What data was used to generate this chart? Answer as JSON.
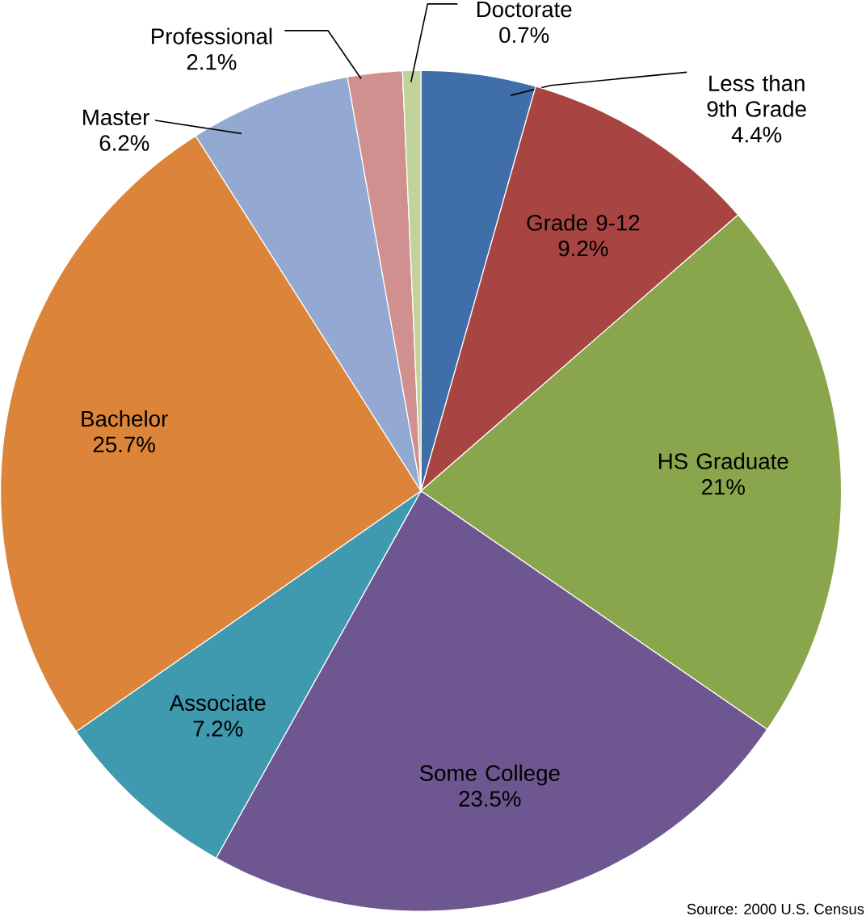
{
  "chart_data": {
    "type": "pie",
    "categories": [
      "Less than 9th Grade",
      "Grade 9-12",
      "HS Graduate",
      "Some College",
      "Associate",
      "Bachelor",
      "Master",
      "Professional",
      "Doctorate"
    ],
    "values": [
      4.4,
      9.2,
      21,
      23.5,
      7.2,
      25.7,
      6.2,
      2.1,
      0.7
    ],
    "value_labels": [
      "4.4%",
      "9.2%",
      "21%",
      "23.5%",
      "7.2%",
      "25.7%",
      "6.2%",
      "2.1%",
      "0.7%"
    ],
    "colors": [
      "#3f6ea8",
      "#a84543",
      "#8aa64c",
      "#6e5790",
      "#3f9ab0",
      "#dc843a",
      "#93a9d1",
      "#d09090",
      "#c0d39a"
    ],
    "annotations": [
      "Source: 2000 U.S. Census"
    ]
  }
}
